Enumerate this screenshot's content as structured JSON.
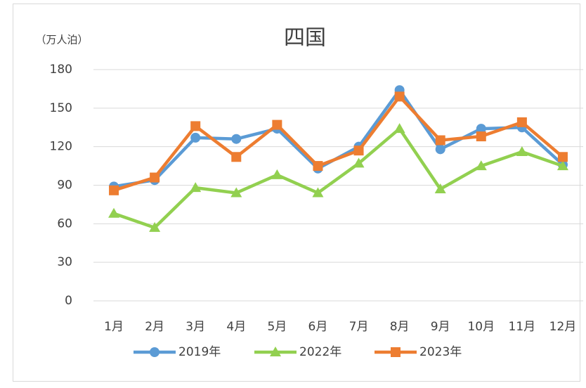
{
  "chart_data": {
    "type": "line",
    "title": "四国",
    "y_label": "（万人泊）",
    "categories": [
      "1月",
      "2月",
      "3月",
      "4月",
      "5月",
      "6月",
      "7月",
      "8月",
      "9月",
      "10月",
      "11月",
      "12月"
    ],
    "series": [
      {
        "name": "2019年",
        "color": "#5b9bd5",
        "marker": "circle",
        "values": [
          89,
          94,
          127,
          126,
          134,
          103,
          120,
          164,
          118,
          134,
          135,
          106
        ]
      },
      {
        "name": "2022年",
        "color": "#92d050",
        "marker": "triangle",
        "values": [
          68,
          57,
          88,
          84,
          98,
          84,
          107,
          134,
          87,
          105,
          116,
          105
        ]
      },
      {
        "name": "2023年",
        "color": "#ed7d31",
        "marker": "square",
        "values": [
          86,
          96,
          136,
          112,
          137,
          105,
          117,
          159,
          125,
          128,
          139,
          112
        ]
      }
    ],
    "ylim": [
      0,
      180
    ],
    "yticks": [
      0,
      30,
      60,
      90,
      120,
      150,
      180
    ],
    "grid": true,
    "legend": "bottom"
  }
}
